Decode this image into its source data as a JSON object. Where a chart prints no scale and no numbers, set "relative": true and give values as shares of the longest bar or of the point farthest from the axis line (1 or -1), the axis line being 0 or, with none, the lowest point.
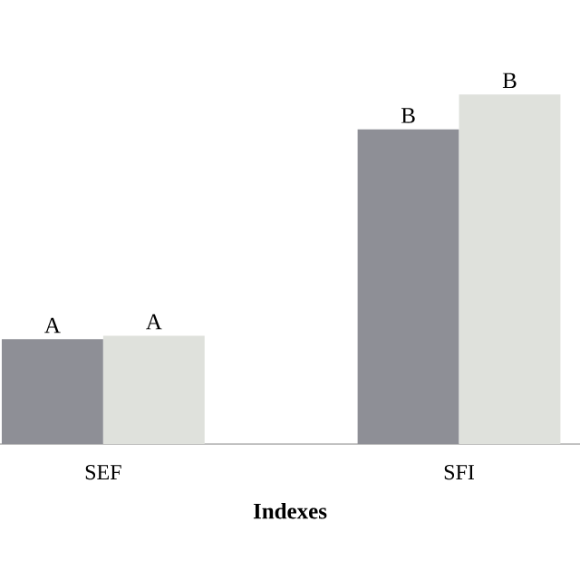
{
  "chart_data": {
    "type": "bar",
    "xlabel": "Indexes",
    "relative": true,
    "categories": [
      "SEF",
      "SFI"
    ],
    "series": [
      {
        "color": "#8e8f96",
        "values": [
          0.3,
          0.9
        ]
      },
      {
        "color": "#dfe1dc",
        "values": [
          0.31,
          1
        ]
      }
    ],
    "annotations": [
      "A",
      "A",
      "B",
      "B"
    ]
  }
}
